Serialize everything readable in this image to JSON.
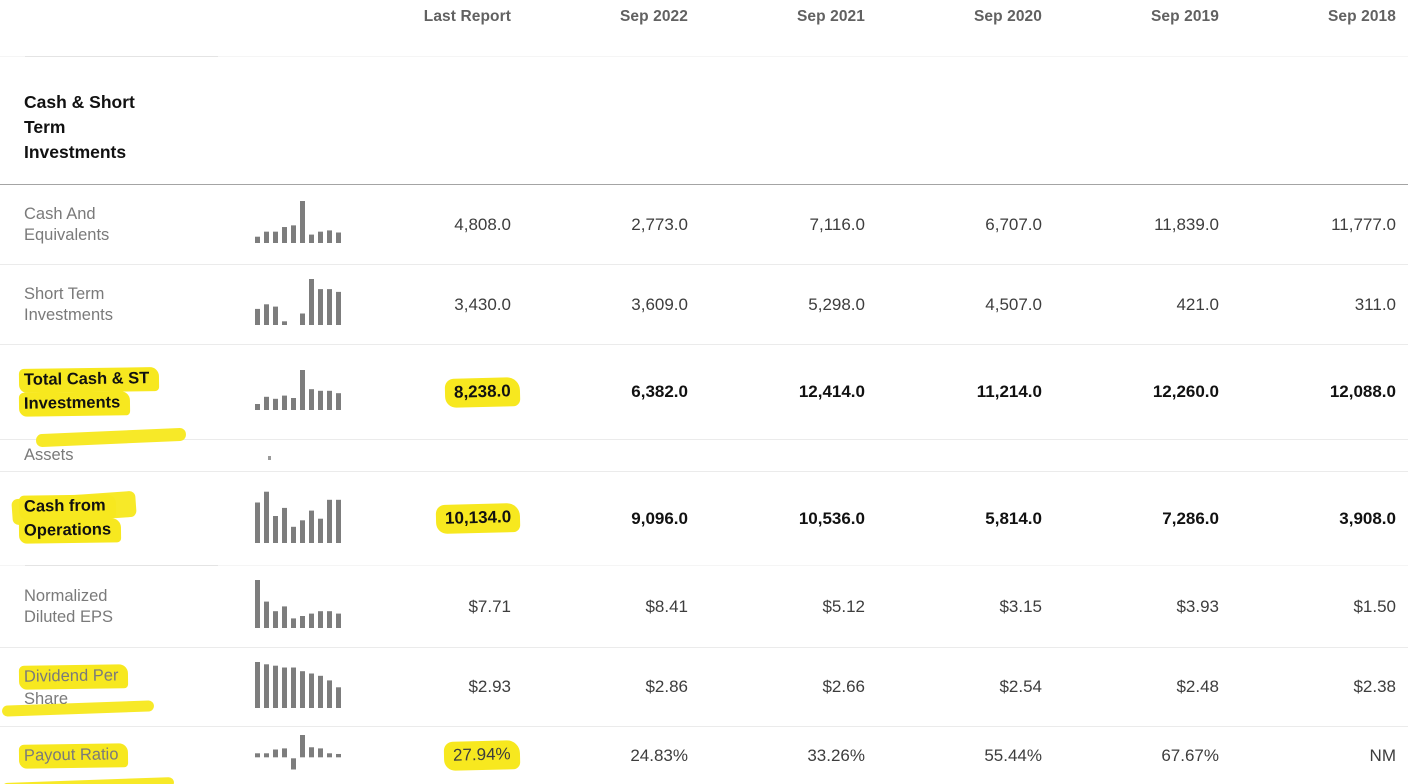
{
  "columns": [
    "Last Report",
    "Sep 2022",
    "Sep 2021",
    "Sep 2020",
    "Sep 2019",
    "Sep 2018"
  ],
  "rows": [
    {
      "kind": "section",
      "label": "Cash & Short Term Investments",
      "lines": [
        "Cash & Short",
        "Term",
        "Investments"
      ]
    },
    {
      "kind": "data",
      "label": "Cash And Equivalents",
      "lines": [
        "Cash And",
        "Equivalents"
      ],
      "bold": false,
      "spark": [
        0.15,
        0.27,
        0.27,
        0.38,
        0.42,
        1.0,
        0.2,
        0.27,
        0.3,
        0.25
      ],
      "values": [
        "4,808.0",
        "2,773.0",
        "7,116.0",
        "6,707.0",
        "11,839.0",
        "11,777.0"
      ]
    },
    {
      "kind": "data",
      "label": "Short Term Investments",
      "lines": [
        "Short Term",
        "Investments"
      ],
      "bold": false,
      "spark": [
        0.35,
        0.45,
        0.4,
        0.08,
        0,
        0.25,
        1.0,
        0.78,
        0.78,
        0.72
      ],
      "values": [
        "3,430.0",
        "3,609.0",
        "5,298.0",
        "4,507.0",
        "421.0",
        "311.0"
      ]
    },
    {
      "kind": "data",
      "label": "Total Cash & ST Investments",
      "lines": [
        "Total Cash & ST",
        "Investments"
      ],
      "bold": true,
      "hl_lines": [
        0,
        1
      ],
      "hl_value": 0,
      "spark": [
        0.15,
        0.33,
        0.28,
        0.36,
        0.3,
        1.0,
        0.52,
        0.48,
        0.48,
        0.42
      ],
      "values": [
        "8,238.0",
        "6,382.0",
        "12,414.0",
        "11,214.0",
        "12,260.0",
        "12,088.0"
      ]
    },
    {
      "kind": "label",
      "label": "Assets",
      "lines": [
        "Assets"
      ]
    },
    {
      "kind": "data",
      "label": "Cash from Operations",
      "lines": [
        "Cash from",
        "Operations"
      ],
      "bold": true,
      "hl_lines": [
        0,
        1
      ],
      "hl_value": 0,
      "spark": [
        0.75,
        0.95,
        0.5,
        0.65,
        0.3,
        0.42,
        0.6,
        0.45,
        0.8,
        0.8
      ],
      "values": [
        "10,134.0",
        "9,096.0",
        "10,536.0",
        "5,814.0",
        "7,286.0",
        "3,908.0"
      ]
    },
    {
      "kind": "data",
      "label": "Normalized Diluted EPS",
      "lines": [
        "Normalized",
        "Diluted EPS"
      ],
      "bold": false,
      "spark": [
        1.0,
        0.55,
        0.35,
        0.45,
        0.2,
        0.25,
        0.3,
        0.35,
        0.35,
        0.3
      ],
      "values": [
        "$7.71",
        "$8.41",
        "$5.12",
        "$3.15",
        "$3.93",
        "$1.50"
      ]
    },
    {
      "kind": "data",
      "label": "Dividend Per Share",
      "lines": [
        "Dividend Per",
        "Share"
      ],
      "bold": false,
      "hl_lines": [
        0
      ],
      "spark": [
        1.0,
        0.95,
        0.92,
        0.88,
        0.88,
        0.8,
        0.75,
        0.7,
        0.6,
        0.45
      ],
      "values": [
        "$2.93",
        "$2.86",
        "$2.66",
        "$2.54",
        "$2.48",
        "$2.38"
      ]
    },
    {
      "kind": "data",
      "label": "Payout Ratio",
      "lines": [
        "Payout Ratio"
      ],
      "bold": false,
      "hl_lines": [
        0
      ],
      "hl_value": 0,
      "spark_has_negative": true,
      "spark": [
        0.18,
        0.18,
        0.35,
        0.4,
        -0.5,
        1.0,
        0.45,
        0.4,
        0.18,
        0.15
      ],
      "values": [
        "27.94%",
        "24.83%",
        "33.26%",
        "55.44%",
        "67.67%",
        "NM"
      ]
    }
  ],
  "colors": {
    "highlight": "#f7e81f",
    "spark_bar": "#7d7d7d",
    "section_border": "#a4a4a4",
    "row_border": "#ebebeb",
    "header_text": "#616161",
    "label_text": "#7a7a7a",
    "value_text": "#3d3d3d",
    "bold_text": "#111111"
  }
}
